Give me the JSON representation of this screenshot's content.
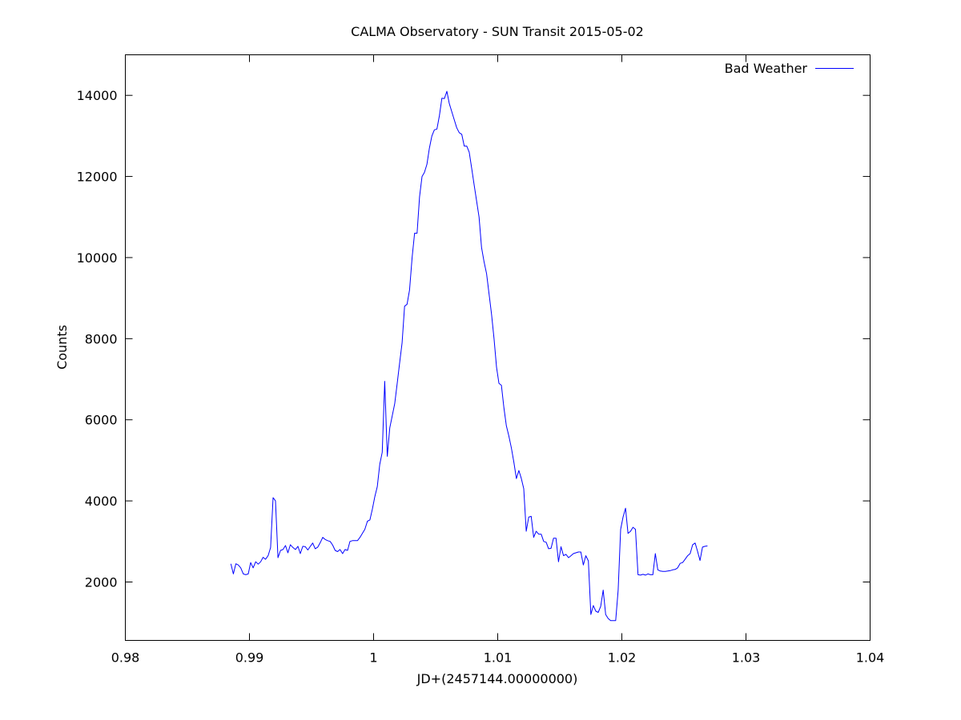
{
  "chart_data": {
    "type": "line",
    "title": "CALMA Observatory - SUN Transit 2015-05-02",
    "xlabel": "JD+(2457144.00000000)",
    "ylabel": "Counts",
    "xlim": [
      0.98,
      1.04
    ],
    "ylim": [
      560,
      15000
    ],
    "x_ticks": [
      0.98,
      0.99,
      1.0,
      1.01,
      1.02,
      1.03,
      1.04
    ],
    "x_tick_labels": [
      "0.98",
      "0.99",
      "1",
      "1.01",
      "1.02",
      "1.03",
      "1.04"
    ],
    "y_ticks": [
      2000,
      4000,
      6000,
      8000,
      10000,
      12000,
      14000
    ],
    "y_tick_labels": [
      "2000",
      "4000",
      "6000",
      "8000",
      "10000",
      "12000",
      "14000"
    ],
    "legend_position": "top-right",
    "grid": false,
    "series": [
      {
        "name": "Bad Weather",
        "color": "#0000ff",
        "points": [
          [
            0.9885,
            2450
          ],
          [
            0.9887,
            2200
          ],
          [
            0.9889,
            2450
          ],
          [
            0.9891,
            2420
          ],
          [
            0.9893,
            2350
          ],
          [
            0.9895,
            2200
          ],
          [
            0.9897,
            2180
          ],
          [
            0.9899,
            2200
          ],
          [
            0.9901,
            2480
          ],
          [
            0.9903,
            2350
          ],
          [
            0.9905,
            2500
          ],
          [
            0.9907,
            2440
          ],
          [
            0.9909,
            2500
          ],
          [
            0.9911,
            2610
          ],
          [
            0.9913,
            2560
          ],
          [
            0.9915,
            2650
          ],
          [
            0.9917,
            2850
          ],
          [
            0.9919,
            4080
          ],
          [
            0.9921,
            4000
          ],
          [
            0.9923,
            2600
          ],
          [
            0.9925,
            2780
          ],
          [
            0.9927,
            2800
          ],
          [
            0.9929,
            2900
          ],
          [
            0.9931,
            2720
          ],
          [
            0.9933,
            2920
          ],
          [
            0.9935,
            2850
          ],
          [
            0.9937,
            2800
          ],
          [
            0.9939,
            2880
          ],
          [
            0.9941,
            2700
          ],
          [
            0.9943,
            2880
          ],
          [
            0.9945,
            2870
          ],
          [
            0.9947,
            2790
          ],
          [
            0.9949,
            2880
          ],
          [
            0.9951,
            2960
          ],
          [
            0.9953,
            2820
          ],
          [
            0.9955,
            2860
          ],
          [
            0.9957,
            2970
          ],
          [
            0.9959,
            3100
          ],
          [
            0.9961,
            3050
          ],
          [
            0.9963,
            3020
          ],
          [
            0.9965,
            3000
          ],
          [
            0.9967,
            2910
          ],
          [
            0.9969,
            2780
          ],
          [
            0.9971,
            2750
          ],
          [
            0.9973,
            2800
          ],
          [
            0.9975,
            2700
          ],
          [
            0.9977,
            2800
          ],
          [
            0.9979,
            2780
          ],
          [
            0.9981,
            3000
          ],
          [
            0.9983,
            3020
          ],
          [
            0.9985,
            3020
          ],
          [
            0.9987,
            3020
          ],
          [
            0.9989,
            3100
          ],
          [
            0.9991,
            3200
          ],
          [
            0.9993,
            3300
          ],
          [
            0.9995,
            3500
          ],
          [
            0.9997,
            3530
          ],
          [
            0.9999,
            3800
          ],
          [
            1.0001,
            4100
          ],
          [
            1.0003,
            4350
          ],
          [
            1.0005,
            4900
          ],
          [
            1.0007,
            5200
          ],
          [
            1.0009,
            6950
          ],
          [
            1.0011,
            5100
          ],
          [
            1.0013,
            5800
          ],
          [
            1.0015,
            6100
          ],
          [
            1.0017,
            6400
          ],
          [
            1.0019,
            6900
          ],
          [
            1.0021,
            7400
          ],
          [
            1.0023,
            7900
          ],
          [
            1.0025,
            8800
          ],
          [
            1.0027,
            8850
          ],
          [
            1.0029,
            9200
          ],
          [
            1.0031,
            10000
          ],
          [
            1.0033,
            10600
          ],
          [
            1.0035,
            10600
          ],
          [
            1.0037,
            11500
          ],
          [
            1.0039,
            12000
          ],
          [
            1.0041,
            12100
          ],
          [
            1.0043,
            12300
          ],
          [
            1.0045,
            12700
          ],
          [
            1.0047,
            13000
          ],
          [
            1.0049,
            13150
          ],
          [
            1.0051,
            13170
          ],
          [
            1.0053,
            13500
          ],
          [
            1.0055,
            13930
          ],
          [
            1.0057,
            13920
          ],
          [
            1.0059,
            14100
          ],
          [
            1.0061,
            13800
          ],
          [
            1.0063,
            13600
          ],
          [
            1.0065,
            13400
          ],
          [
            1.0067,
            13200
          ],
          [
            1.0069,
            13080
          ],
          [
            1.0071,
            13040
          ],
          [
            1.0073,
            12750
          ],
          [
            1.0075,
            12750
          ],
          [
            1.0077,
            12600
          ],
          [
            1.0079,
            12200
          ],
          [
            1.0081,
            11800
          ],
          [
            1.0083,
            11400
          ],
          [
            1.0085,
            11000
          ],
          [
            1.0087,
            10250
          ],
          [
            1.0089,
            9900
          ],
          [
            1.0091,
            9600
          ],
          [
            1.0093,
            9100
          ],
          [
            1.0095,
            8600
          ],
          [
            1.0097,
            8000
          ],
          [
            1.0099,
            7300
          ],
          [
            1.0101,
            6900
          ],
          [
            1.0103,
            6850
          ],
          [
            1.0105,
            6300
          ],
          [
            1.0107,
            5850
          ],
          [
            1.0109,
            5600
          ],
          [
            1.0111,
            5300
          ],
          [
            1.0113,
            4950
          ],
          [
            1.0115,
            4550
          ],
          [
            1.0117,
            4750
          ],
          [
            1.0119,
            4550
          ],
          [
            1.0121,
            4300
          ],
          [
            1.0123,
            3250
          ],
          [
            1.0125,
            3600
          ],
          [
            1.0127,
            3620
          ],
          [
            1.0129,
            3100
          ],
          [
            1.0131,
            3250
          ],
          [
            1.0133,
            3180
          ],
          [
            1.0135,
            3180
          ],
          [
            1.0137,
            3000
          ],
          [
            1.0139,
            2980
          ],
          [
            1.0141,
            2820
          ],
          [
            1.0143,
            2830
          ],
          [
            1.0145,
            3080
          ],
          [
            1.0147,
            3080
          ],
          [
            1.0149,
            2500
          ],
          [
            1.0151,
            2870
          ],
          [
            1.0153,
            2650
          ],
          [
            1.0155,
            2680
          ],
          [
            1.0157,
            2600
          ],
          [
            1.0159,
            2650
          ],
          [
            1.0161,
            2700
          ],
          [
            1.0163,
            2720
          ],
          [
            1.0165,
            2740
          ],
          [
            1.0167,
            2740
          ],
          [
            1.0169,
            2420
          ],
          [
            1.0171,
            2650
          ],
          [
            1.0173,
            2520
          ],
          [
            1.0175,
            1200
          ],
          [
            1.0177,
            1420
          ],
          [
            1.0179,
            1280
          ],
          [
            1.0181,
            1250
          ],
          [
            1.0183,
            1400
          ],
          [
            1.0185,
            1800
          ],
          [
            1.0187,
            1200
          ],
          [
            1.0189,
            1100
          ],
          [
            1.0191,
            1050
          ],
          [
            1.0193,
            1050
          ],
          [
            1.0195,
            1050
          ],
          [
            1.0197,
            1800
          ],
          [
            1.0199,
            3300
          ],
          [
            1.0201,
            3600
          ],
          [
            1.0203,
            3820
          ],
          [
            1.0205,
            3200
          ],
          [
            1.0207,
            3250
          ],
          [
            1.0209,
            3350
          ],
          [
            1.0211,
            3300
          ],
          [
            1.0213,
            2180
          ],
          [
            1.0215,
            2170
          ],
          [
            1.0217,
            2190
          ],
          [
            1.0219,
            2170
          ],
          [
            1.0221,
            2200
          ],
          [
            1.0223,
            2180
          ],
          [
            1.0225,
            2180
          ],
          [
            1.0227,
            2700
          ],
          [
            1.0229,
            2300
          ],
          [
            1.0231,
            2270
          ],
          [
            1.0233,
            2260
          ],
          [
            1.0235,
            2260
          ],
          [
            1.0237,
            2270
          ],
          [
            1.0239,
            2280
          ],
          [
            1.0241,
            2300
          ],
          [
            1.0243,
            2310
          ],
          [
            1.0245,
            2350
          ],
          [
            1.0247,
            2460
          ],
          [
            1.0249,
            2480
          ],
          [
            1.0251,
            2560
          ],
          [
            1.0253,
            2650
          ],
          [
            1.0255,
            2700
          ],
          [
            1.0257,
            2920
          ],
          [
            1.0259,
            2960
          ],
          [
            1.0261,
            2760
          ],
          [
            1.0263,
            2530
          ],
          [
            1.0265,
            2860
          ],
          [
            1.0267,
            2880
          ],
          [
            1.0269,
            2890
          ]
        ]
      }
    ]
  }
}
